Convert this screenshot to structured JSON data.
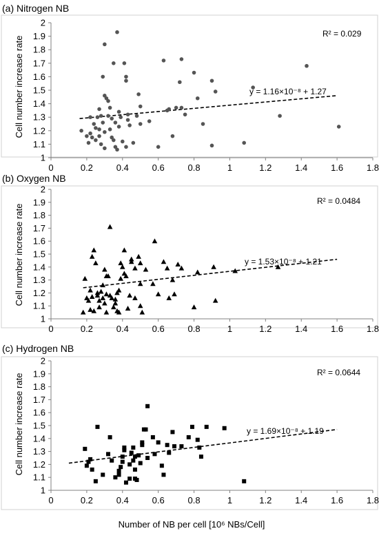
{
  "chart_data": [
    {
      "type": "scatter",
      "title": "(a) Nitrogen NB",
      "ylabel": "Cell number increase rate",
      "xlim": [
        0,
        1.8
      ],
      "ylim": [
        1,
        2
      ],
      "x_ticks": [
        "0",
        "0.2",
        "0.4",
        "0.6",
        "0.8",
        "1",
        "1.2",
        "1.4",
        "1.6",
        "1.8"
      ],
      "y_ticks": [
        "1",
        "1.1",
        "1.2",
        "1.3",
        "1.4",
        "1.5",
        "1.6",
        "1.7",
        "1.8",
        "1.9",
        "2"
      ],
      "marker": "circle",
      "marker_color": "#555555",
      "r_squared": "R² = 0.029",
      "equation": "y = 1.16×10⁻⁸ + 1.27",
      "trendline": {
        "x": [
          0.16,
          1.6
        ],
        "y": [
          1.29,
          1.46
        ]
      },
      "points": [
        [
          0.17,
          1.2
        ],
        [
          0.2,
          1.16
        ],
        [
          0.21,
          1.11
        ],
        [
          0.22,
          1.3
        ],
        [
          0.22,
          1.18
        ],
        [
          0.23,
          1.15
        ],
        [
          0.24,
          1.25
        ],
        [
          0.25,
          1.22
        ],
        [
          0.25,
          1.13
        ],
        [
          0.26,
          1.3
        ],
        [
          0.27,
          1.36
        ],
        [
          0.27,
          1.21
        ],
        [
          0.27,
          1.16
        ],
        [
          0.28,
          1.31
        ],
        [
          0.28,
          1.1
        ],
        [
          0.29,
          1.6
        ],
        [
          0.29,
          1.26
        ],
        [
          0.3,
          1.46
        ],
        [
          0.3,
          1.19
        ],
        [
          0.3,
          1.07
        ],
        [
          0.3,
          1.84
        ],
        [
          0.31,
          1.44
        ],
        [
          0.32,
          1.42
        ],
        [
          0.32,
          1.31
        ],
        [
          0.33,
          1.37
        ],
        [
          0.33,
          1.21
        ],
        [
          0.34,
          1.29
        ],
        [
          0.34,
          1.15
        ],
        [
          0.35,
          1.7
        ],
        [
          0.35,
          1.13
        ],
        [
          0.36,
          1.26
        ],
        [
          0.36,
          1.08
        ],
        [
          0.37,
          1.93
        ],
        [
          0.37,
          1.06
        ],
        [
          0.38,
          1.34
        ],
        [
          0.38,
          1.23
        ],
        [
          0.39,
          1.3
        ],
        [
          0.4,
          1.12
        ],
        [
          0.41,
          1.7
        ],
        [
          0.42,
          1.6
        ],
        [
          0.42,
          1.57
        ],
        [
          0.42,
          1.08
        ],
        [
          0.43,
          1.28
        ],
        [
          0.43,
          1.32
        ],
        [
          0.44,
          1.24
        ],
        [
          0.46,
          1.11
        ],
        [
          0.48,
          1.31
        ],
        [
          0.49,
          1.47
        ],
        [
          0.5,
          1.38
        ],
        [
          0.5,
          1.25
        ],
        [
          0.55,
          1.27
        ],
        [
          0.6,
          1.08
        ],
        [
          0.63,
          1.72
        ],
        [
          0.65,
          1.35
        ],
        [
          0.66,
          1.36
        ],
        [
          0.68,
          1.16
        ],
        [
          0.7,
          1.37
        ],
        [
          0.72,
          1.56
        ],
        [
          0.73,
          1.73
        ],
        [
          0.73,
          1.37
        ],
        [
          0.75,
          1.32
        ],
        [
          0.8,
          1.63
        ],
        [
          0.82,
          1.44
        ],
        [
          0.85,
          1.25
        ],
        [
          0.9,
          1.09
        ],
        [
          0.9,
          1.57
        ],
        [
          0.92,
          1.49
        ],
        [
          1.08,
          1.11
        ],
        [
          1.13,
          1.52
        ],
        [
          1.28,
          1.31
        ],
        [
          1.43,
          1.68
        ],
        [
          1.61,
          1.23
        ]
      ]
    },
    {
      "type": "scatter",
      "title": "(b) Oxygen NB",
      "ylabel": "Cell number increase rate",
      "xlim": [
        0,
        1.8
      ],
      "ylim": [
        1,
        2
      ],
      "x_ticks": [
        "0",
        "0.2",
        "0.4",
        "0.6",
        "0.8",
        "1",
        "1.2",
        "1.4",
        "1.6",
        "1.8"
      ],
      "y_ticks": [
        "1",
        "1.1",
        "1.2",
        "1.3",
        "1.4",
        "1.5",
        "1.6",
        "1.7",
        "1.8",
        "1.9",
        "2"
      ],
      "marker": "triangle",
      "marker_color": "#000000",
      "r_squared": "R² = 0.0484",
      "equation": "y = 1.53×10⁻⁸ + 1.21",
      "trendline": {
        "x": [
          0.18,
          1.6
        ],
        "y": [
          1.24,
          1.46
        ]
      },
      "points": [
        [
          0.18,
          1.05
        ],
        [
          0.19,
          1.31
        ],
        [
          0.2,
          1.16
        ],
        [
          0.21,
          1.14
        ],
        [
          0.22,
          1.07
        ],
        [
          0.22,
          1.22
        ],
        [
          0.23,
          1.48
        ],
        [
          0.23,
          1.17
        ],
        [
          0.24,
          1.53
        ],
        [
          0.24,
          1.06
        ],
        [
          0.25,
          1.43
        ],
        [
          0.26,
          1.18
        ],
        [
          0.26,
          1.2
        ],
        [
          0.27,
          1.14
        ],
        [
          0.27,
          1.09
        ],
        [
          0.28,
          1.21
        ],
        [
          0.29,
          1.26
        ],
        [
          0.29,
          1.16
        ],
        [
          0.3,
          1.38
        ],
        [
          0.3,
          1.12
        ],
        [
          0.31,
          1.33
        ],
        [
          0.31,
          1.19
        ],
        [
          0.31,
          1.05
        ],
        [
          0.32,
          1.33
        ],
        [
          0.33,
          1.71
        ],
        [
          0.33,
          1.18
        ],
        [
          0.34,
          1.16
        ],
        [
          0.35,
          1.09
        ],
        [
          0.36,
          1.12
        ],
        [
          0.36,
          1.15
        ],
        [
          0.37,
          1.06
        ],
        [
          0.37,
          1.2
        ],
        [
          0.38,
          1.05
        ],
        [
          0.38,
          1.22
        ],
        [
          0.39,
          1.31
        ],
        [
          0.39,
          1.43
        ],
        [
          0.4,
          1.4
        ],
        [
          0.41,
          1.53
        ],
        [
          0.41,
          1.35
        ],
        [
          0.42,
          1.33
        ],
        [
          0.43,
          1.08
        ],
        [
          0.44,
          1.18
        ],
        [
          0.45,
          1.46
        ],
        [
          0.45,
          1.44
        ],
        [
          0.47,
          1.39
        ],
        [
          0.47,
          1.16
        ],
        [
          0.49,
          1.48
        ],
        [
          0.5,
          1.43
        ],
        [
          0.5,
          1.27
        ],
        [
          0.5,
          1.1
        ],
        [
          0.51,
          1.05
        ],
        [
          0.53,
          1.38
        ],
        [
          0.57,
          1.27
        ],
        [
          0.58,
          1.6
        ],
        [
          0.6,
          1.19
        ],
        [
          0.63,
          1.44
        ],
        [
          0.65,
          1.39
        ],
        [
          0.66,
          1.16
        ],
        [
          0.68,
          1.3
        ],
        [
          0.69,
          1.19
        ],
        [
          0.71,
          1.42
        ],
        [
          0.73,
          1.39
        ],
        [
          0.8,
          1.09
        ],
        [
          0.82,
          1.36
        ],
        [
          0.91,
          1.4
        ],
        [
          0.92,
          1.14
        ],
        [
          1.03,
          1.37
        ],
        [
          1.27,
          1.4
        ]
      ]
    },
    {
      "type": "scatter",
      "title": "(c) Hydrogen NB",
      "ylabel": "Cell number increase rate",
      "xlabel": "Number of NB per cell [10⁶ NBs/Cell]",
      "xlim": [
        0,
        1.8
      ],
      "ylim": [
        1,
        2
      ],
      "x_ticks": [
        "0",
        "0.2",
        "0.4",
        "0.6",
        "0.8",
        "1",
        "1.2",
        "1.4",
        "1.6",
        "1.8"
      ],
      "y_ticks": [
        "1",
        "1.1",
        "1.2",
        "1.3",
        "1.4",
        "1.5",
        "1.6",
        "1.7",
        "1.8",
        "1.9",
        "2"
      ],
      "marker": "square",
      "marker_color": "#000000",
      "r_squared": "R² = 0.0644",
      "equation": "y = 1.69×10⁻⁸ + 1.19",
      "trendline": {
        "x": [
          0.1,
          1.6
        ],
        "y": [
          1.21,
          1.47
        ]
      },
      "points": [
        [
          0.19,
          1.32
        ],
        [
          0.2,
          1.19
        ],
        [
          0.21,
          1.22
        ],
        [
          0.22,
          1.24
        ],
        [
          0.23,
          1.16
        ],
        [
          0.25,
          1.07
        ],
        [
          0.26,
          1.49
        ],
        [
          0.29,
          1.12
        ],
        [
          0.32,
          1.28
        ],
        [
          0.33,
          1.41
        ],
        [
          0.34,
          1.23
        ],
        [
          0.36,
          1.1
        ],
        [
          0.38,
          1.12
        ],
        [
          0.38,
          1.15
        ],
        [
          0.39,
          1.18
        ],
        [
          0.4,
          1.22
        ],
        [
          0.4,
          1.26
        ],
        [
          0.41,
          1.31
        ],
        [
          0.41,
          1.33
        ],
        [
          0.42,
          1.06
        ],
        [
          0.44,
          1.2
        ],
        [
          0.44,
          1.09
        ],
        [
          0.45,
          1.29
        ],
        [
          0.46,
          1.23
        ],
        [
          0.46,
          1.33
        ],
        [
          0.47,
          1.16
        ],
        [
          0.47,
          1.09
        ],
        [
          0.47,
          1.26
        ],
        [
          0.48,
          1.08
        ],
        [
          0.49,
          1.27
        ],
        [
          0.5,
          1.21
        ],
        [
          0.51,
          1.35
        ],
        [
          0.51,
          1.37
        ],
        [
          0.52,
          1.47
        ],
        [
          0.53,
          1.47
        ],
        [
          0.54,
          1.65
        ],
        [
          0.54,
          1.25
        ],
        [
          0.57,
          1.41
        ],
        [
          0.58,
          1.28
        ],
        [
          0.6,
          1.37
        ],
        [
          0.62,
          1.19
        ],
        [
          0.63,
          1.12
        ],
        [
          0.65,
          1.35
        ],
        [
          0.66,
          1.29
        ],
        [
          0.68,
          1.45
        ],
        [
          0.69,
          1.34
        ],
        [
          0.73,
          1.34
        ],
        [
          0.77,
          1.41
        ],
        [
          0.79,
          1.49
        ],
        [
          0.82,
          1.39
        ],
        [
          0.83,
          1.33
        ],
        [
          0.84,
          1.26
        ],
        [
          0.87,
          1.49
        ],
        [
          0.97,
          1.48
        ],
        [
          1.08,
          1.07
        ]
      ]
    }
  ]
}
